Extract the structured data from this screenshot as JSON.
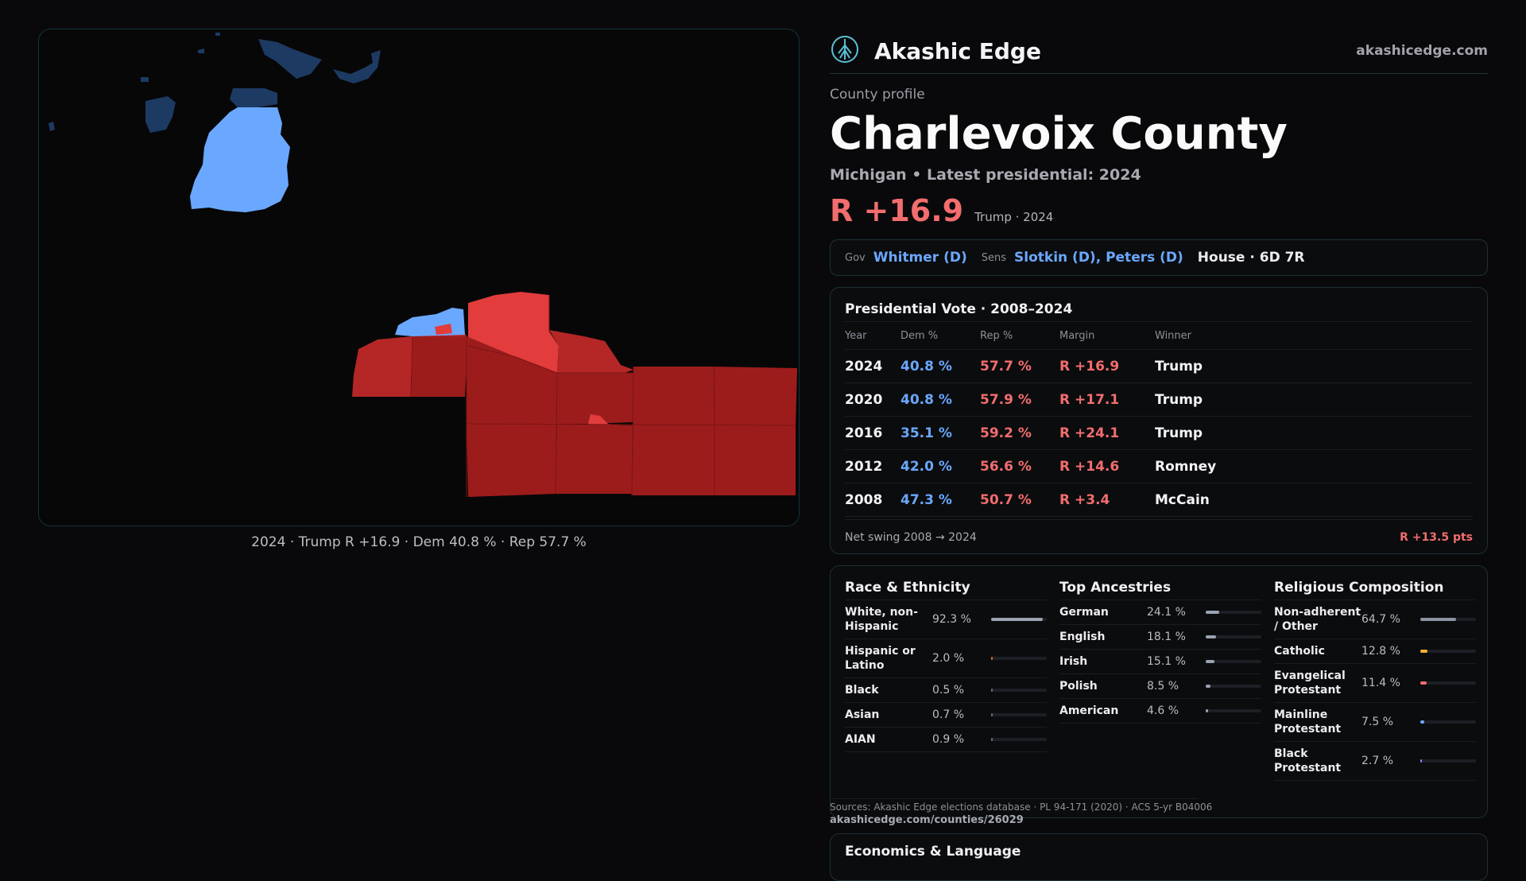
{
  "brand": {
    "name": "Akashic Edge",
    "url": "akashicedge.com",
    "logo_icon": "tree-sigil-icon"
  },
  "profile": {
    "eyebrow": "County profile",
    "title": "Charlevoix County",
    "subtitle": "Michigan • Latest presidential: 2024",
    "margin": "R +16.9",
    "margin_note": "Trump · 2024"
  },
  "officials": {
    "gov_label": "Gov",
    "gov": "Whitmer (D)",
    "sens_label": "Sens",
    "sens": "Slotkin (D), Peters (D)",
    "house": "House · 6D 7R"
  },
  "presidential": {
    "title": "Presidential Vote · 2008–2024",
    "headers": {
      "year": "Year",
      "dem": "Dem %",
      "rep": "Rep %",
      "margin": "Margin",
      "winner": "Winner"
    },
    "rows": [
      {
        "year": "2024",
        "dem": "40.8 %",
        "rep": "57.7 %",
        "margin": "R +16.9",
        "winner": "Trump"
      },
      {
        "year": "2020",
        "dem": "40.8 %",
        "rep": "57.9 %",
        "margin": "R +17.1",
        "winner": "Trump"
      },
      {
        "year": "2016",
        "dem": "35.1 %",
        "rep": "59.2 %",
        "margin": "R +24.1",
        "winner": "Trump"
      },
      {
        "year": "2012",
        "dem": "42.0 %",
        "rep": "56.6 %",
        "margin": "R +14.6",
        "winner": "Romney"
      },
      {
        "year": "2008",
        "dem": "47.3 %",
        "rep": "50.7 %",
        "margin": "R +3.4",
        "winner": "McCain"
      }
    ],
    "swing_label": "Net swing 2008 → 2024",
    "swing_value": "R +13.5 pts"
  },
  "race": {
    "title": "Race & Ethnicity",
    "items": [
      {
        "label": "White, non-Hispanic",
        "value": "92.3 %",
        "pct": 92.3,
        "color": "#9aa3b2"
      },
      {
        "label": "Hispanic or Latino",
        "value": "2.0 %",
        "pct": 2.0,
        "color": "#e0662e"
      },
      {
        "label": "Black",
        "value": "0.5 %",
        "pct": 0.5,
        "color": "#6c6c74"
      },
      {
        "label": "Asian",
        "value": "0.7 %",
        "pct": 0.7,
        "color": "#6c6c74"
      },
      {
        "label": "AIAN",
        "value": "0.9 %",
        "pct": 0.9,
        "color": "#6c6c74"
      }
    ]
  },
  "ancestry": {
    "title": "Top Ancestries",
    "items": [
      {
        "label": "German",
        "value": "24.1 %",
        "pct": 24.1,
        "color": "#9aa3b2"
      },
      {
        "label": "English",
        "value": "18.1 %",
        "pct": 18.1,
        "color": "#9aa3b2"
      },
      {
        "label": "Irish",
        "value": "15.1 %",
        "pct": 15.1,
        "color": "#9aa3b2"
      },
      {
        "label": "Polish",
        "value": "8.5 %",
        "pct": 8.5,
        "color": "#9aa3b2"
      },
      {
        "label": "American",
        "value": "4.6 %",
        "pct": 4.6,
        "color": "#9aa3b2"
      }
    ]
  },
  "religion": {
    "title": "Religious Composition",
    "items": [
      {
        "label": "Non-adherent / Other",
        "value": "64.7 %",
        "pct": 64.7,
        "color": "#8c93a0"
      },
      {
        "label": "Catholic",
        "value": "12.8 %",
        "pct": 12.8,
        "color": "#f2b134"
      },
      {
        "label": "Evangelical Protestant",
        "value": "11.4 %",
        "pct": 11.4,
        "color": "#f26d6d"
      },
      {
        "label": "Mainline Protestant",
        "value": "7.5 %",
        "pct": 7.5,
        "color": "#6aa8ff"
      },
      {
        "label": "Black Protestant",
        "value": "2.7 %",
        "pct": 2.7,
        "color": "#9b7bff"
      }
    ]
  },
  "sources": {
    "line1": "Sources: Akashic Edge elections database · PL 94-171 (2020) · ACS 5-yr B04006",
    "line2": "akashicedge.com/counties/26029"
  },
  "economics": {
    "title": "Economics & Language"
  },
  "map": {
    "caption": "2024 · Trump R +16.9 · Dem 40.8 % · Rep 57.7 %",
    "colors": {
      "dem": "#6aa8ff",
      "dem_dark": "#1d3a63",
      "rep": "#e23c3c",
      "rep_mid": "#b52626",
      "rep_dark": "#9c1c1c"
    }
  }
}
